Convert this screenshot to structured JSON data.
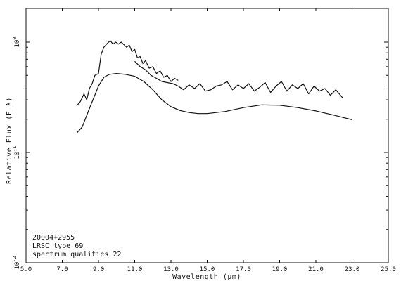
{
  "chart_data": {
    "type": "line",
    "xlabel": "Wavelength (μm)",
    "ylabel": "Relative Flux (F_λ)",
    "xlim": [
      5.0,
      25.0
    ],
    "ylim_log10": [
      -2,
      0
    ],
    "yscale": "log",
    "grid": false,
    "x_ticks": [
      "5.0",
      "7.0",
      "9.0",
      "11.0",
      "13.0",
      "15.0",
      "17.0",
      "19.0",
      "21.0",
      "23.0",
      "25.0"
    ],
    "y_ticks": [
      {
        "base": "10",
        "exp": "0",
        "value": 1.0
      },
      {
        "base": "10",
        "exp": "-1",
        "value": 0.1
      },
      {
        "base": "10",
        "exp": "-2",
        "value": 0.01
      }
    ],
    "annotation": [
      "20004+2955",
      "LRSC type 69",
      "spectrum qualities 22"
    ],
    "series": [
      {
        "style": "upper-noisy-blue",
        "x": [
          7.8,
          8.0,
          8.2,
          8.35,
          8.5,
          8.65,
          8.8,
          9.0,
          9.15,
          9.3,
          9.5,
          9.65,
          9.8,
          9.95,
          10.1,
          10.25,
          10.4,
          10.55,
          10.7,
          10.85,
          11.0,
          11.15,
          11.3,
          11.45,
          11.6,
          11.8,
          12.0,
          12.2,
          12.4,
          12.6,
          12.8,
          13.0,
          13.2,
          13.4
        ],
        "y": [
          0.265,
          0.29,
          0.34,
          0.3,
          0.38,
          0.42,
          0.5,
          0.52,
          0.78,
          0.9,
          0.98,
          1.03,
          0.96,
          1.0,
          0.96,
          1.0,
          0.95,
          0.9,
          0.94,
          0.82,
          0.86,
          0.72,
          0.74,
          0.64,
          0.68,
          0.58,
          0.6,
          0.52,
          0.55,
          0.48,
          0.5,
          0.44,
          0.47,
          0.45
        ]
      },
      {
        "style": "upper-noisy-red",
        "x": [
          11.0,
          11.3,
          11.6,
          11.9,
          12.2,
          12.5,
          12.8,
          13.1,
          13.4,
          13.7,
          14.0,
          14.3,
          14.6,
          14.9,
          15.2,
          15.5,
          15.8,
          16.1,
          16.4,
          16.7,
          17.0,
          17.3,
          17.6,
          17.9,
          18.2,
          18.5,
          18.8,
          19.1,
          19.4,
          19.7,
          20.0,
          20.3,
          20.6,
          20.9,
          21.2,
          21.5,
          21.8,
          22.1,
          22.5
        ],
        "y": [
          0.67,
          0.6,
          0.56,
          0.5,
          0.47,
          0.44,
          0.43,
          0.42,
          0.4,
          0.37,
          0.41,
          0.38,
          0.42,
          0.36,
          0.37,
          0.4,
          0.41,
          0.44,
          0.37,
          0.41,
          0.38,
          0.42,
          0.36,
          0.39,
          0.43,
          0.35,
          0.4,
          0.44,
          0.36,
          0.41,
          0.38,
          0.42,
          0.34,
          0.4,
          0.36,
          0.38,
          0.33,
          0.37,
          0.31
        ]
      },
      {
        "style": "lower-smooth",
        "x": [
          7.8,
          8.1,
          8.5,
          9.0,
          9.3,
          9.6,
          10.0,
          10.5,
          11.0,
          11.5,
          12.0,
          12.5,
          13.0,
          13.5,
          14.0,
          14.5,
          15.0,
          16.0,
          17.0,
          18.0,
          19.0,
          20.0,
          21.0,
          22.0,
          23.0
        ],
        "y": [
          0.15,
          0.17,
          0.25,
          0.4,
          0.48,
          0.51,
          0.52,
          0.51,
          0.49,
          0.44,
          0.37,
          0.3,
          0.26,
          0.24,
          0.23,
          0.225,
          0.225,
          0.235,
          0.255,
          0.27,
          0.268,
          0.255,
          0.238,
          0.218,
          0.198
        ]
      }
    ]
  }
}
